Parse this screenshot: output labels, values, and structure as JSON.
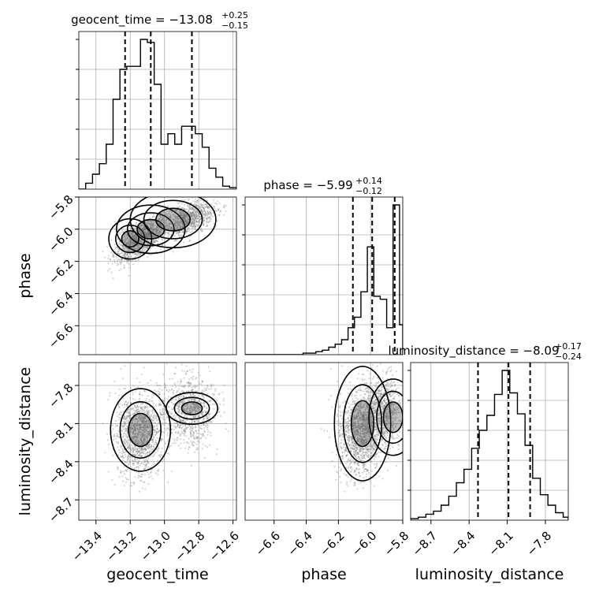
{
  "chart_data": {
    "type": "corner",
    "grid": true,
    "params": [
      {
        "name": "geocent_time",
        "label": "geocent_time",
        "range": [
          -13.5,
          -12.58
        ],
        "ticks": [
          -13.4,
          -13.2,
          -13.0,
          -12.8,
          -12.6
        ],
        "tick_labels": [
          "−13.4",
          "−13.2",
          "−13.0",
          "−12.8",
          "−12.6"
        ],
        "title": {
          "text": "geocent_time = −13.08",
          "plus": "+0.25",
          "minus": "−0.15"
        },
        "quantiles": [
          -13.23,
          -13.08,
          -12.84
        ],
        "hist_bins": [
          -13.5,
          -13.46,
          -13.42,
          -13.38,
          -13.34,
          -13.3,
          -13.26,
          -13.22,
          -13.18,
          -13.14,
          -13.1,
          -13.06,
          -13.02,
          -12.98,
          -12.94,
          -12.9,
          -12.86,
          -12.82,
          -12.78,
          -12.74,
          -12.7,
          -12.66,
          -12.62,
          -12.58
        ],
        "hist_counts": [
          0,
          0.04,
          0.1,
          0.17,
          0.3,
          0.6,
          0.8,
          0.82,
          0.82,
          1.0,
          0.98,
          0.7,
          0.3,
          0.37,
          0.3,
          0.42,
          0.42,
          0.37,
          0.28,
          0.14,
          0.08,
          0.02,
          0.01
        ]
      },
      {
        "name": "phase",
        "label": "phase",
        "range": [
          -6.78,
          -5.8
        ],
        "ticks": [
          -6.6,
          -6.4,
          -6.2,
          -6.0,
          -5.8
        ],
        "tick_labels": [
          "−6.6",
          "−6.4",
          "−6.2",
          "−6.0",
          "−5.8"
        ],
        "title": {
          "text": "phase = −5.99",
          "plus": "+0.14",
          "minus": "−0.12"
        },
        "quantiles": [
          -6.11,
          -5.99,
          -5.85
        ],
        "hist_bins": [
          -6.78,
          -6.74,
          -6.7,
          -6.66,
          -6.62,
          -6.58,
          -6.54,
          -6.5,
          -6.46,
          -6.42,
          -6.38,
          -6.34,
          -6.3,
          -6.26,
          -6.22,
          -6.18,
          -6.14,
          -6.1,
          -6.06,
          -6.02,
          -5.98,
          -5.94,
          -5.9,
          -5.86,
          -5.82,
          -5.8
        ],
        "hist_counts": [
          0,
          0,
          0,
          0,
          0,
          0,
          0,
          0,
          0,
          0.01,
          0.01,
          0.02,
          0.03,
          0.05,
          0.07,
          0.1,
          0.18,
          0.25,
          0.42,
          0.72,
          0.39,
          0.37,
          0.18,
          1.0,
          0.2
        ]
      },
      {
        "name": "luminosity_distance",
        "label": "luminosity_distance",
        "range": [
          -8.86,
          -7.62
        ],
        "ticks": [
          -8.7,
          -8.4,
          -8.1,
          -7.8
        ],
        "tick_labels": [
          "−8.7",
          "−8.4",
          "−8.1",
          "−7.8"
        ],
        "title": {
          "text": "luminosity_distance = −8.09",
          "plus": "+0.17",
          "minus": "−0.24"
        },
        "quantiles": [
          -8.33,
          -8.09,
          -7.92
        ],
        "hist_bins": [
          -8.86,
          -8.8,
          -8.74,
          -8.68,
          -8.62,
          -8.56,
          -8.5,
          -8.44,
          -8.38,
          -8.32,
          -8.26,
          -8.2,
          -8.14,
          -8.08,
          -8.02,
          -7.96,
          -7.9,
          -7.84,
          -7.78,
          -7.72,
          -7.66,
          -7.62
        ],
        "hist_counts": [
          0.01,
          0.02,
          0.04,
          0.06,
          0.1,
          0.16,
          0.25,
          0.34,
          0.48,
          0.6,
          0.7,
          0.84,
          1.0,
          0.85,
          0.71,
          0.5,
          0.28,
          0.17,
          0.1,
          0.05,
          0.02
        ]
      }
    ]
  }
}
